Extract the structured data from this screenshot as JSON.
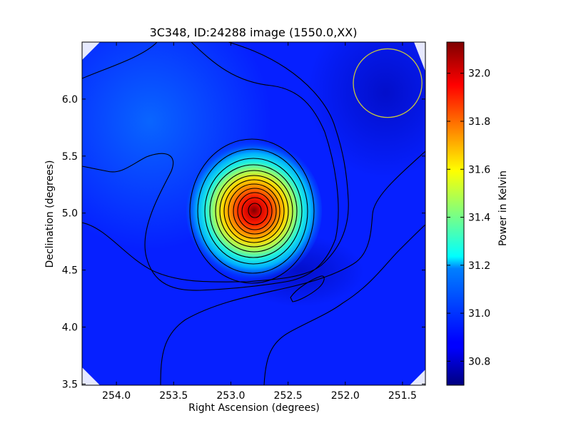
{
  "chart_data": {
    "type": "heatmap",
    "title": "3C348, ID:24288 image (1550.0,XX)",
    "xlabel": "Right Ascension (degrees)",
    "ylabel": "Declination (degrees)",
    "colorbar_label": "Power in Kelvin",
    "xlim": [
      254.3,
      251.3
    ],
    "ylim": [
      3.49,
      6.5
    ],
    "xticks": [
      "254.0",
      "253.5",
      "253.0",
      "252.5",
      "252.0",
      "251.5"
    ],
    "yticks": [
      "3.5",
      "4.0",
      "4.5",
      "5.0",
      "5.5",
      "6.0"
    ],
    "colorbar_range": [
      30.7,
      32.13
    ],
    "colorbar_ticks": [
      "30.8",
      "31.0",
      "31.2",
      "31.4",
      "31.6",
      "31.8",
      "32.0"
    ],
    "colormap": "jet",
    "contour_color": "#000000",
    "beam_color": "#c8c83c",
    "peak": {
      "ra": 252.77,
      "dec": 5.02,
      "value": 32.12
    },
    "secondary_minimum": {
      "ra": 252.38,
      "dec": 4.32
    },
    "beam": {
      "ra": 251.63,
      "dec": 6.14,
      "radius_deg": 0.3
    }
  }
}
